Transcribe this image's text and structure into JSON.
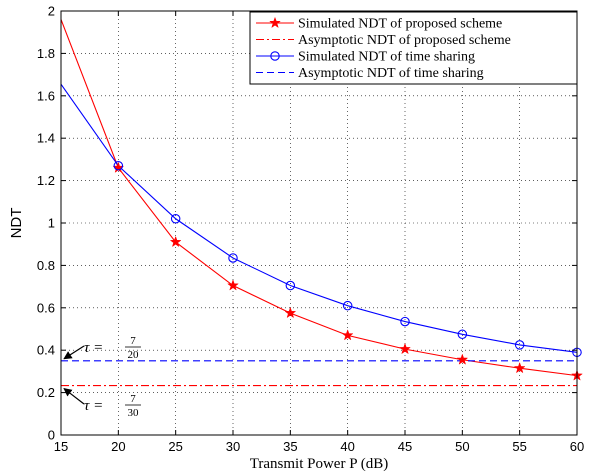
{
  "chart_data": {
    "type": "line",
    "title": "",
    "xlabel": "Transmit Power P (dB)",
    "ylabel": "NDT",
    "xlim": [
      15,
      60
    ],
    "ylim": [
      0,
      2
    ],
    "xticks": [
      15,
      20,
      25,
      30,
      35,
      40,
      45,
      50,
      55,
      60
    ],
    "yticks": [
      0,
      0.2,
      0.4,
      0.6,
      0.8,
      1,
      1.2,
      1.4,
      1.6,
      1.8,
      2
    ],
    "xtick_labels": [
      "15",
      "20",
      "25",
      "30",
      "35",
      "40",
      "45",
      "50",
      "55",
      "60"
    ],
    "ytick_labels": [
      "0",
      "0.2",
      "0.4",
      "0.6",
      "0.8",
      "1",
      "1.2",
      "1.4",
      "1.6",
      "1.8",
      "2"
    ],
    "grid": true,
    "legend_position": "top-right",
    "series": [
      {
        "name": "Simulated NDT of proposed scheme",
        "color": "#ff0000",
        "style": "solid",
        "marker": "star",
        "x": [
          15,
          20,
          25,
          30,
          35,
          40,
          45,
          50,
          55,
          60
        ],
        "y": [
          1.96,
          1.26,
          0.91,
          0.705,
          0.575,
          0.47,
          0.405,
          0.355,
          0.315,
          0.28
        ],
        "marker_x": [
          20,
          25,
          30,
          35,
          40,
          45,
          50,
          55,
          60
        ]
      },
      {
        "name": "Asymptotic NDT of proposed scheme",
        "color": "#ff0000",
        "style": "dashdot",
        "marker": "none",
        "x": [
          15,
          60
        ],
        "y": [
          0.2333,
          0.2333
        ]
      },
      {
        "name": "Simulated NDT of time sharing",
        "color": "#0000ff",
        "style": "solid",
        "marker": "circle",
        "x": [
          15,
          20,
          25,
          30,
          35,
          40,
          45,
          50,
          55,
          60
        ],
        "y": [
          1.655,
          1.27,
          1.02,
          0.835,
          0.705,
          0.61,
          0.535,
          0.475,
          0.425,
          0.39
        ],
        "marker_x": [
          20,
          25,
          30,
          35,
          40,
          45,
          50,
          55,
          60
        ]
      },
      {
        "name": "Asymptotic NDT of time sharing",
        "color": "#0000ff",
        "style": "dashed",
        "marker": "none",
        "x": [
          15,
          60
        ],
        "y": [
          0.35,
          0.35
        ]
      }
    ],
    "annotations": [
      {
        "id": "tau-ts",
        "prefix": "τ = ",
        "numerator": "7",
        "denominator": "20",
        "target_x": 15,
        "target_y": 0.35
      },
      {
        "id": "tau-prop",
        "prefix": "τ = ",
        "numerator": "7",
        "denominator": "30",
        "target_x": 15,
        "target_y": 0.2333
      }
    ]
  }
}
